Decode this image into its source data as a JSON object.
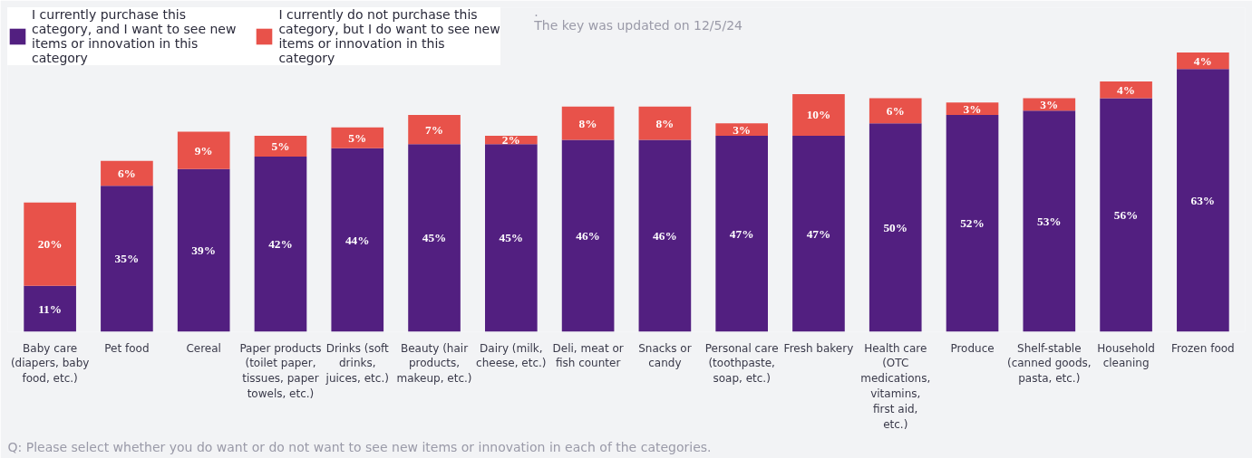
{
  "chart_data": {
    "type": "bar",
    "stacked": true,
    "grid": false,
    "tick_labels": "x",
    "legend": "top left",
    "categories": [
      "Baby care (diapers, baby food, etc.)",
      "Pet food",
      "Cereal",
      "Paper products (toilet paper, tissues, paper towels, etc.)",
      "Drinks (soft drinks, juices, etc.)",
      "Beauty (hair products, makeup, etc.)",
      "Dairy (milk, cheese, etc.)",
      "Deli, meat or fish counter",
      "Snacks or candy",
      "Personal care (toothpaste, soap, etc.)",
      "Fresh bakery",
      "Health care (OTC medications, vitamins, first aid, etc.)",
      "Produce",
      "Shelf-stable (canned goods, pasta, etc.)",
      "Household cleaning",
      "Frozen food"
    ],
    "series": [
      {
        "name": "I currently purchase this category, and I want to see new items or innovation in this category",
        "color": "#521f80",
        "values": [
          11,
          35,
          39,
          42,
          44,
          45,
          45,
          46,
          46,
          47,
          47,
          50,
          52,
          53,
          56,
          63
        ],
        "value_labels": [
          "11%",
          "35%",
          "39%",
          "42%",
          "44%",
          "45%",
          "45%",
          "46%",
          "46%",
          "47%",
          "47%",
          "50%",
          "52%",
          "53%",
          "56%",
          "63%"
        ]
      },
      {
        "name": "I currently do not purchase this category, but I do want to see new items or innovation in this category",
        "color": "#e8524a",
        "values": [
          20,
          6,
          9,
          5,
          5,
          7,
          2,
          8,
          8,
          3,
          10,
          6,
          3,
          3,
          4,
          4
        ],
        "value_labels": [
          "20%",
          "6%",
          "9%",
          "5%",
          "5%",
          "7%",
          "2%",
          "8%",
          "8%",
          "3%",
          "10%",
          "6%",
          "3%",
          "3%",
          "4%",
          "4%"
        ]
      }
    ],
    "annotations": [
      ".",
      "The key was updated on 12/5/24",
      "Q: Please select whether you do want or do not want to see new items or innovation in each of the categories."
    ]
  }
}
